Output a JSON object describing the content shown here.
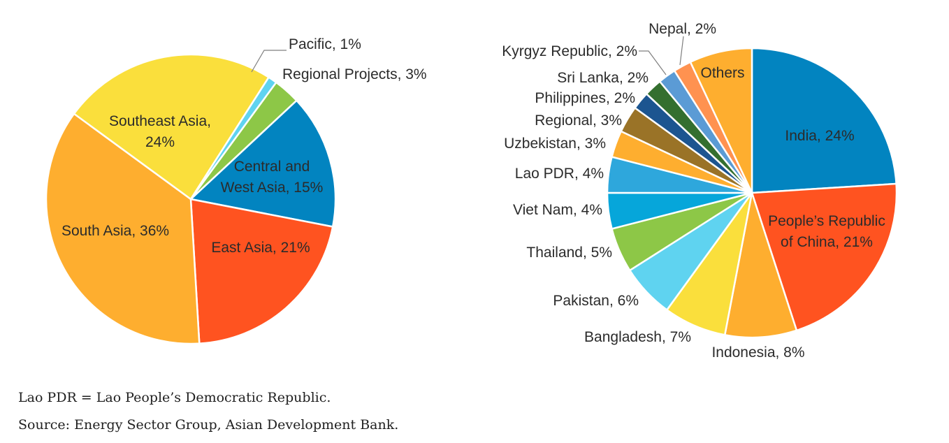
{
  "colors": {
    "blue": "#0284C0",
    "red": "#FF5320",
    "orange": "#FEAE2F",
    "yellow": "#FADF3C",
    "light_blue": "#5FD3F0",
    "green": "#8DC747",
    "cyan": "#06A6DA",
    "sky": "#2EA7DC",
    "brown": "#9A7327",
    "navy": "#1C5590",
    "dark_green": "#346F2F",
    "steel": "#5B9BD5",
    "salmon": "#FF9250"
  },
  "chart_data": [
    {
      "type": "pie",
      "slices": [
        {
          "label": "Central and West Asia, 15%",
          "value": 15,
          "color": "#0284C0"
        },
        {
          "label": "East Asia, 21%",
          "value": 21,
          "color": "#FF5320"
        },
        {
          "label": "South Asia, 36%",
          "value": 36,
          "color": "#FEAE2F"
        },
        {
          "label": "Southeast Asia, 24%",
          "value": 24,
          "color": "#FADF3C"
        },
        {
          "label": "Pacific, 1%",
          "value": 1,
          "color": "#5FD3F0"
        },
        {
          "label": "Regional Projects, 3%",
          "value": 3,
          "color": "#8DC747"
        }
      ]
    },
    {
      "type": "pie",
      "slices": [
        {
          "label": "India, 24%",
          "value": 24,
          "color": "#0284C0"
        },
        {
          "label": "People’s Republic of China, 21%",
          "value": 21,
          "color": "#FF5320"
        },
        {
          "label": "Indonesia, 8%",
          "value": 8,
          "color": "#FEAE2F"
        },
        {
          "label": "Bangladesh, 7%",
          "value": 7,
          "color": "#FADF3C"
        },
        {
          "label": "Pakistan, 6%",
          "value": 6,
          "color": "#5FD3F0"
        },
        {
          "label": "Thailand, 5%",
          "value": 5,
          "color": "#8DC747"
        },
        {
          "label": "Viet Nam, 4%",
          "value": 4,
          "color": "#06A6DA"
        },
        {
          "label": "Lao PDR, 4%",
          "value": 4,
          "color": "#2EA7DC"
        },
        {
          "label": "Uzbekistan, 3%",
          "value": 3,
          "color": "#FEAE2F"
        },
        {
          "label": "Regional, 3%",
          "value": 3,
          "color": "#9A7327"
        },
        {
          "label": "Philippines, 2%",
          "value": 2,
          "color": "#1C5590"
        },
        {
          "label": "Sri Lanka, 2%",
          "value": 2,
          "color": "#346F2F"
        },
        {
          "label": "Kyrgyz Republic, 2%",
          "value": 2,
          "color": "#5B9BD5"
        },
        {
          "label": "Nepal, 2%",
          "value": 2,
          "color": "#FF9250"
        },
        {
          "label": "Others",
          "value": 7,
          "color": "#FEAE2F"
        }
      ]
    }
  ],
  "footnote": {
    "abbreviation": "Lao PDR = Lao People’s Democratic Republic.",
    "source": "Source: Energy Sector Group, Asian Development Bank."
  }
}
